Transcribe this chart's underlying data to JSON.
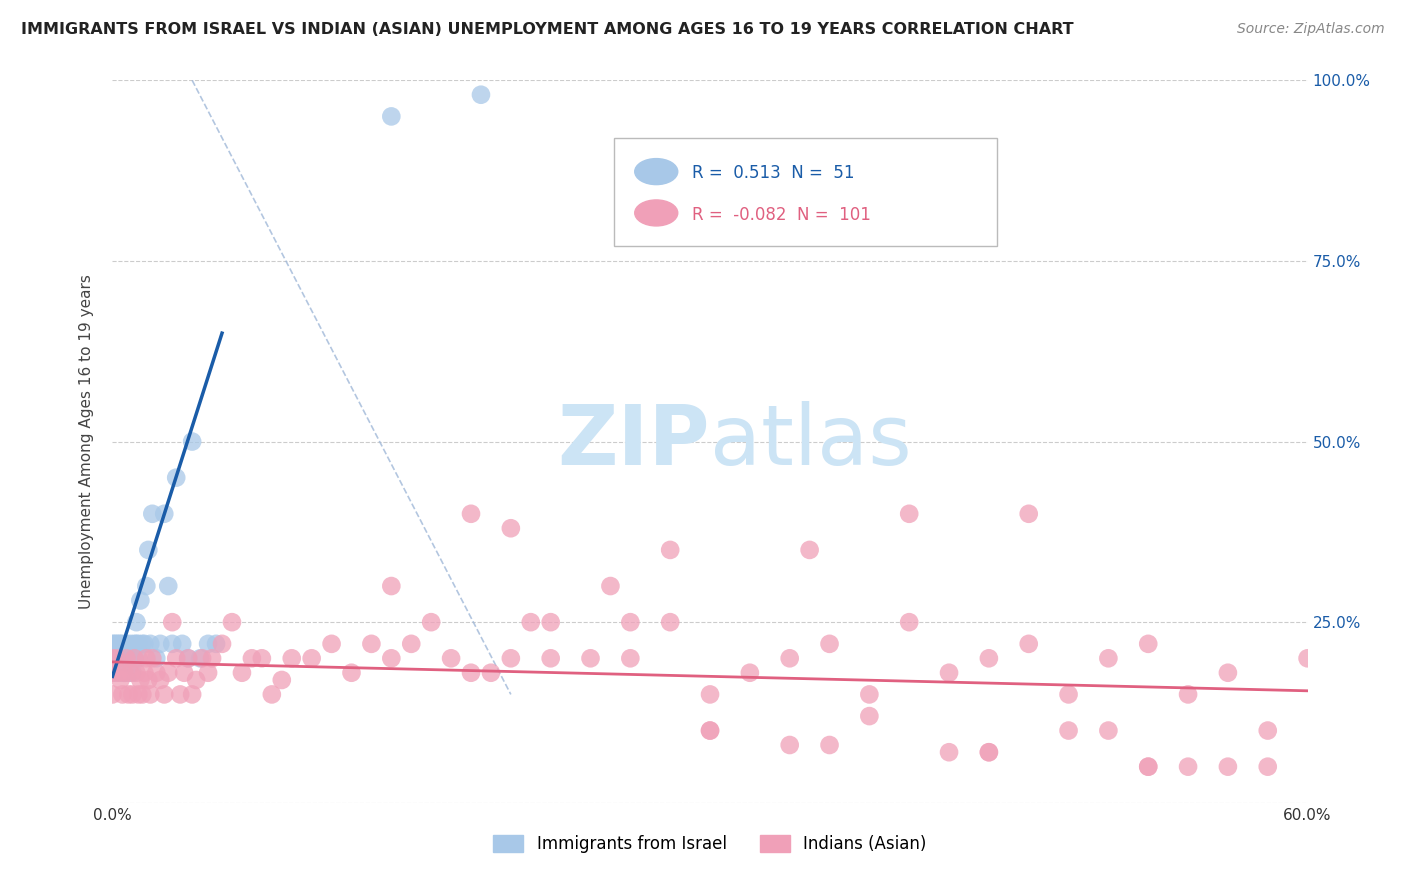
{
  "title": "IMMIGRANTS FROM ISRAEL VS INDIAN (ASIAN) UNEMPLOYMENT AMONG AGES 16 TO 19 YEARS CORRELATION CHART",
  "source": "Source: ZipAtlas.com",
  "ylabel": "Unemployment Among Ages 16 to 19 years",
  "xlabel_israel": "Immigrants from Israel",
  "xlabel_indian": "Indians (Asian)",
  "xlim": [
    0.0,
    0.6
  ],
  "ylim": [
    0.0,
    1.0
  ],
  "xticks": [
    0.0,
    0.6
  ],
  "xtick_labels": [
    "0.0%",
    "60.0%"
  ],
  "yticks": [
    0.0,
    0.25,
    0.5,
    0.75,
    1.0
  ],
  "ytick_labels_right": [
    "",
    "25.0%",
    "50.0%",
    "75.0%",
    "100.0%"
  ],
  "legend_blue_r": "0.513",
  "legend_blue_n": "51",
  "legend_pink_r": "-0.082",
  "legend_pink_n": "101",
  "blue_color": "#a8c8e8",
  "blue_line_color": "#1a5ca8",
  "pink_color": "#f0a0b8",
  "pink_line_color": "#e06080",
  "watermark_color": "#cce4f5",
  "background_color": "#ffffff",
  "grid_color": "#cccccc",
  "blue_scatter_x": [
    0.0,
    0.0,
    0.0,
    0.001,
    0.001,
    0.002,
    0.002,
    0.003,
    0.003,
    0.004,
    0.004,
    0.005,
    0.005,
    0.005,
    0.006,
    0.006,
    0.007,
    0.007,
    0.008,
    0.008,
    0.009,
    0.009,
    0.01,
    0.01,
    0.011,
    0.011,
    0.012,
    0.012,
    0.013,
    0.013,
    0.014,
    0.015,
    0.016,
    0.017,
    0.018,
    0.019,
    0.02,
    0.022,
    0.024,
    0.026,
    0.028,
    0.03,
    0.032,
    0.035,
    0.038,
    0.04,
    0.044,
    0.048,
    0.052,
    0.14,
    0.185
  ],
  "blue_scatter_y": [
    0.2,
    0.22,
    0.18,
    0.2,
    0.22,
    0.22,
    0.18,
    0.2,
    0.22,
    0.2,
    0.22,
    0.18,
    0.2,
    0.22,
    0.2,
    0.18,
    0.22,
    0.2,
    0.18,
    0.2,
    0.22,
    0.2,
    0.18,
    0.2,
    0.22,
    0.2,
    0.22,
    0.25,
    0.2,
    0.22,
    0.28,
    0.22,
    0.22,
    0.3,
    0.35,
    0.22,
    0.4,
    0.2,
    0.22,
    0.4,
    0.3,
    0.22,
    0.45,
    0.22,
    0.2,
    0.5,
    0.2,
    0.22,
    0.22,
    0.95,
    0.98
  ],
  "pink_scatter_x": [
    0.0,
    0.0,
    0.0,
    0.002,
    0.003,
    0.004,
    0.005,
    0.006,
    0.007,
    0.008,
    0.009,
    0.01,
    0.011,
    0.012,
    0.013,
    0.014,
    0.015,
    0.016,
    0.017,
    0.018,
    0.019,
    0.02,
    0.022,
    0.024,
    0.026,
    0.028,
    0.03,
    0.032,
    0.034,
    0.036,
    0.038,
    0.04,
    0.042,
    0.045,
    0.048,
    0.05,
    0.055,
    0.06,
    0.065,
    0.07,
    0.075,
    0.08,
    0.085,
    0.09,
    0.1,
    0.11,
    0.12,
    0.13,
    0.14,
    0.15,
    0.16,
    0.17,
    0.18,
    0.19,
    0.2,
    0.21,
    0.22,
    0.24,
    0.26,
    0.28,
    0.3,
    0.32,
    0.34,
    0.36,
    0.38,
    0.4,
    0.42,
    0.44,
    0.46,
    0.48,
    0.5,
    0.52,
    0.54,
    0.56,
    0.58,
    0.6,
    0.25,
    0.3,
    0.35,
    0.4,
    0.44,
    0.48,
    0.52,
    0.56,
    0.14,
    0.18,
    0.22,
    0.26,
    0.3,
    0.34,
    0.38,
    0.42,
    0.46,
    0.5,
    0.54,
    0.58,
    0.2,
    0.28,
    0.36,
    0.44,
    0.52
  ],
  "pink_scatter_y": [
    0.18,
    0.2,
    0.15,
    0.2,
    0.18,
    0.17,
    0.15,
    0.18,
    0.2,
    0.15,
    0.18,
    0.15,
    0.2,
    0.18,
    0.15,
    0.17,
    0.15,
    0.18,
    0.2,
    0.17,
    0.15,
    0.2,
    0.18,
    0.17,
    0.15,
    0.18,
    0.25,
    0.2,
    0.15,
    0.18,
    0.2,
    0.15,
    0.17,
    0.2,
    0.18,
    0.2,
    0.22,
    0.25,
    0.18,
    0.2,
    0.2,
    0.15,
    0.17,
    0.2,
    0.2,
    0.22,
    0.18,
    0.22,
    0.2,
    0.22,
    0.25,
    0.2,
    0.18,
    0.18,
    0.2,
    0.25,
    0.2,
    0.2,
    0.25,
    0.25,
    0.15,
    0.18,
    0.2,
    0.22,
    0.15,
    0.25,
    0.18,
    0.2,
    0.22,
    0.15,
    0.2,
    0.22,
    0.15,
    0.18,
    0.1,
    0.2,
    0.3,
    0.1,
    0.35,
    0.4,
    0.07,
    0.1,
    0.05,
    0.05,
    0.3,
    0.4,
    0.25,
    0.2,
    0.1,
    0.08,
    0.12,
    0.07,
    0.4,
    0.1,
    0.05,
    0.05,
    0.38,
    0.35,
    0.08,
    0.07,
    0.05
  ],
  "blue_trend_x": [
    0.0,
    0.055
  ],
  "blue_trend_y": [
    0.175,
    0.65
  ],
  "pink_trend_x": [
    0.0,
    0.6
  ],
  "pink_trend_y": [
    0.195,
    0.155
  ],
  "diag_line_x": [
    0.04,
    0.2
  ],
  "diag_line_y": [
    1.0,
    0.15
  ]
}
